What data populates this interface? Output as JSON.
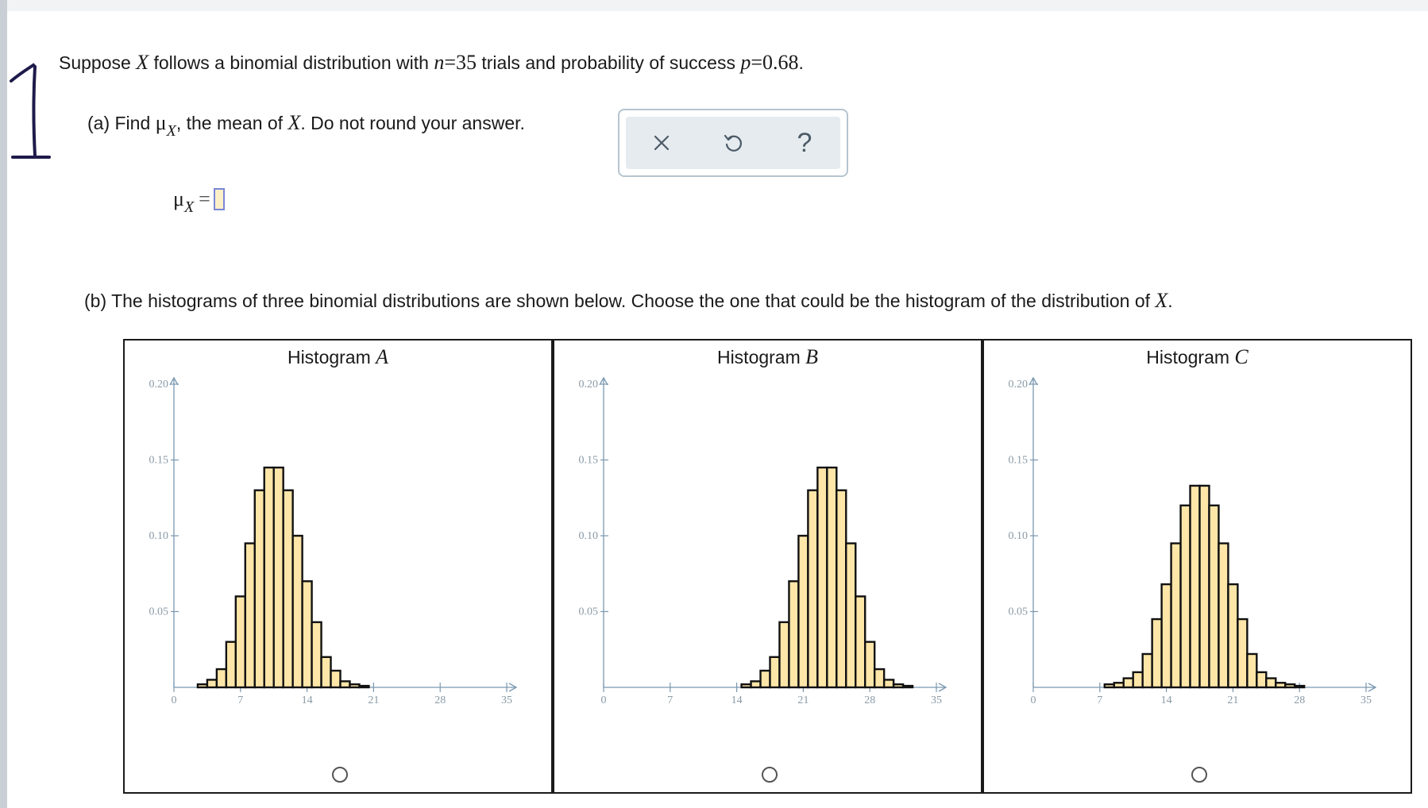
{
  "question": {
    "intro_pre": "Suppose ",
    "var_x": "X",
    "intro_mid": " follows a binomial distribution with ",
    "n_sym": "n",
    "n_eq": "=35",
    "intro_mid2": " trials and probability of success ",
    "p_sym": "p",
    "p_eq": "=0.68",
    "intro_end": "."
  },
  "part_a": {
    "pre": "(a) Find ",
    "mu": "μ",
    "sub": "X",
    "mid": ", the mean of ",
    "var": "X",
    "post": ". Do not round your answer."
  },
  "toolbar": {
    "clear": "×",
    "undo": "↺",
    "help": "?"
  },
  "answer": {
    "mu": "μ",
    "sub": "X",
    "eq": "=",
    "value": ""
  },
  "part_b": {
    "text": "(b) The histograms of three binomial distributions are shown below. Choose the one that could be the histogram of the distribution of ",
    "var": "X",
    "end": "."
  },
  "histograms": [
    {
      "label": "Histogram ",
      "letter": "A"
    },
    {
      "label": "Histogram ",
      "letter": "B"
    },
    {
      "label": "Histogram ",
      "letter": "C"
    }
  ],
  "colors": {
    "bar_fill": "#fde6a8",
    "bar_stroke": "#111111",
    "axis": "#7a98b0",
    "tick_text": "#8a9aa6"
  },
  "chart_data": [
    {
      "type": "bar",
      "title": "Histogram A",
      "x_range": [
        0,
        35
      ],
      "x_ticks": [
        0,
        7,
        14,
        21,
        28,
        35
      ],
      "y_ticks": [
        0.05,
        0.1,
        0.15,
        0.2
      ],
      "y_range": [
        0,
        0.2
      ],
      "x": [
        3,
        4,
        5,
        6,
        7,
        8,
        9,
        10,
        11,
        12,
        13,
        14,
        15,
        16,
        17,
        18,
        19,
        20
      ],
      "values": [
        0.002,
        0.005,
        0.012,
        0.03,
        0.06,
        0.095,
        0.13,
        0.145,
        0.145,
        0.13,
        0.1,
        0.07,
        0.043,
        0.02,
        0.011,
        0.004,
        0.002,
        0.001
      ]
    },
    {
      "type": "bar",
      "title": "Histogram B",
      "x_range": [
        0,
        35
      ],
      "x_ticks": [
        0,
        7,
        14,
        21,
        28,
        35
      ],
      "y_ticks": [
        0.05,
        0.1,
        0.15,
        0.2
      ],
      "y_range": [
        0,
        0.2
      ],
      "x": [
        15,
        16,
        17,
        18,
        19,
        20,
        21,
        22,
        23,
        24,
        25,
        26,
        27,
        28,
        29,
        30,
        31,
        32
      ],
      "values": [
        0.002,
        0.004,
        0.011,
        0.02,
        0.043,
        0.07,
        0.1,
        0.13,
        0.145,
        0.145,
        0.13,
        0.095,
        0.06,
        0.03,
        0.012,
        0.005,
        0.002,
        0.001
      ]
    },
    {
      "type": "bar",
      "title": "Histogram C",
      "x_range": [
        0,
        35
      ],
      "x_ticks": [
        0,
        7,
        14,
        21,
        28,
        35
      ],
      "y_ticks": [
        0.05,
        0.1,
        0.15,
        0.2
      ],
      "y_range": [
        0,
        0.2
      ],
      "x": [
        8,
        9,
        10,
        11,
        12,
        13,
        14,
        15,
        16,
        17,
        18,
        19,
        20,
        21,
        22,
        23,
        24,
        25,
        26,
        27,
        28
      ],
      "values": [
        0.002,
        0.003,
        0.006,
        0.01,
        0.022,
        0.045,
        0.068,
        0.095,
        0.12,
        0.133,
        0.133,
        0.12,
        0.095,
        0.068,
        0.045,
        0.022,
        0.01,
        0.006,
        0.003,
        0.002,
        0.001
      ]
    }
  ]
}
